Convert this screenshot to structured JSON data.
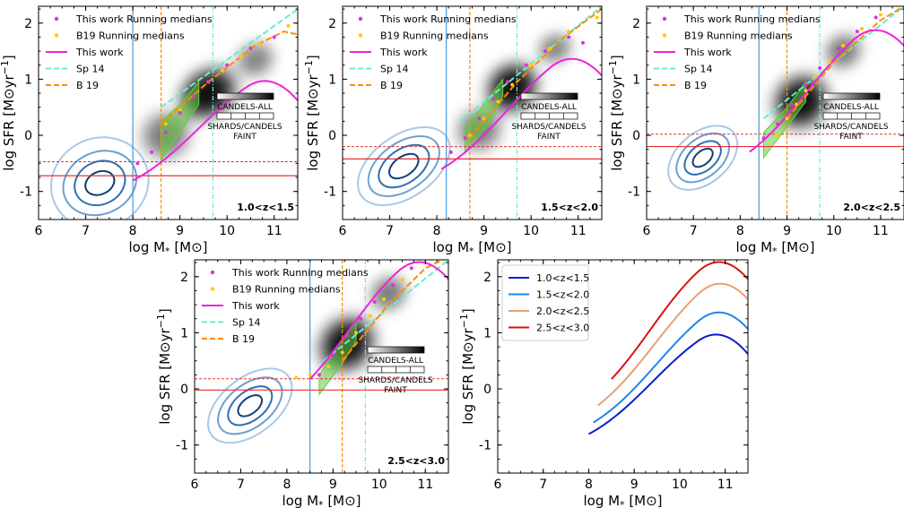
{
  "figure": {
    "xlabel": "log M",
    "xlabel_sub": "*",
    "xlabel_unit": " [M⊙]",
    "ylabel": "log SFR [M⊙yr",
    "ylabel_sup": "−1",
    "ylabel_end": "]"
  },
  "legend": {
    "this_work_medians": "This work Running medians",
    "b19_medians": "B19 Running medians",
    "this_work": "This work",
    "sp14": "Sp 14",
    "b19": "B 19"
  },
  "inset": {
    "candels_all": "CANDELS-ALL",
    "shards_line1": "SHARDS/CANDELS",
    "shards_line2": "FAINT"
  },
  "colors": {
    "this_work": "#ee22dd",
    "b19": "#ff8c00",
    "sp14": "#66eecc",
    "medians_this_work": "#dd33dd",
    "medians_b19": "#ffcc00",
    "mass_limit": "#4a9ad8",
    "sfr_limit": "#e83030",
    "green_band": "#66cc44",
    "contour_dark": "#0f3f78",
    "contour_light": "#a8c8e8"
  },
  "chart_data": [
    {
      "type": "scatter",
      "title": "1.0<z<1.5",
      "xlim": [
        6,
        11.5
      ],
      "ylim": [
        -1.5,
        2.3
      ],
      "xticks": [
        6,
        7,
        8,
        9,
        10,
        11
      ],
      "yticks": [
        -1,
        0,
        1,
        2
      ],
      "mass_limit": 8.0,
      "b19_mass_limit": 8.6,
      "sp14_mass_limit": 9.7,
      "sfr_limit_solid": -0.72,
      "sfr_limit_dashed": -0.47,
      "this_work_params": {
        "a": 2.75,
        "x0": 9.4,
        "w": 0.85,
        "c": -1.25,
        "sl": 0.95,
        "y0": 1.4
      },
      "sp14_line": [
        [
          8.6,
          0.5
        ],
        [
          11.5,
          2.25
        ]
      ],
      "b19_line": [
        [
          8.6,
          0.2
        ],
        [
          9.6,
          0.95
        ],
        [
          10.6,
          1.6
        ],
        [
          11.2,
          1.85
        ],
        [
          11.5,
          1.8
        ]
      ],
      "medians_this_work": [
        [
          8.1,
          -0.5
        ],
        [
          8.4,
          -0.3
        ],
        [
          8.7,
          0.05
        ],
        [
          9.0,
          0.4
        ],
        [
          9.3,
          0.7
        ],
        [
          9.6,
          0.95
        ],
        [
          10.0,
          1.25
        ],
        [
          10.5,
          1.55
        ],
        [
          11.0,
          1.75
        ]
      ],
      "medians_b19": [
        [
          8.7,
          0.2
        ],
        [
          9.0,
          0.45
        ],
        [
          9.3,
          0.7
        ],
        [
          9.6,
          0.95
        ],
        [
          9.9,
          1.15
        ],
        [
          10.3,
          1.4
        ],
        [
          10.7,
          1.62
        ],
        [
          11.3,
          1.95
        ]
      ],
      "green_band": [
        [
          8.6,
          -0.45
        ],
        [
          9.0,
          0.05
        ],
        [
          9.4,
          0.55
        ],
        [
          9.4,
          0.95
        ],
        [
          9.0,
          0.55
        ],
        [
          8.6,
          0.25
        ]
      ],
      "density": [
        {
          "x": 9.6,
          "y": 0.75,
          "sx": 0.85,
          "sy": 0.55,
          "rot": 35,
          "a": 1.0
        },
        {
          "x": 8.7,
          "y": 0.0,
          "sx": 0.7,
          "sy": 0.55,
          "rot": 30,
          "a": 0.55
        },
        {
          "x": 10.6,
          "y": 1.35,
          "sx": 0.55,
          "sy": 0.4,
          "rot": 30,
          "a": 0.5
        }
      ],
      "contours": [
        {
          "x": 7.3,
          "y": -0.85,
          "rx": [
            1.05,
            0.8,
            0.55,
            0.32
          ],
          "ry": [
            0.8,
            0.55,
            0.38,
            0.2
          ],
          "rot": 25
        }
      ],
      "curve_range": [
        8.0,
        11.5
      ],
      "summary_color": "#0a1ecc"
    },
    {
      "type": "scatter",
      "title": "1.5<z<2.0",
      "xlim": [
        6,
        11.5
      ],
      "ylim": [
        -1.5,
        2.3
      ],
      "xticks": [
        6,
        7,
        8,
        9,
        10,
        11
      ],
      "yticks": [
        -1,
        0,
        1,
        2
      ],
      "mass_limit": 8.2,
      "b19_mass_limit": 8.7,
      "sp14_mass_limit": 9.7,
      "sfr_limit_solid": -0.42,
      "sfr_limit_dashed": -0.2,
      "this_work_params": {
        "a": 3.1,
        "x0": 9.5,
        "w": 0.85,
        "c": -1.1,
        "sl": 0.95,
        "y0": 1.55
      },
      "sp14_line": [
        [
          8.5,
          0.25
        ],
        [
          11.5,
          2.3
        ]
      ],
      "b19_line": [
        [
          8.7,
          -0.05
        ],
        [
          9.7,
          0.95
        ],
        [
          10.7,
          1.75
        ],
        [
          11.5,
          2.25
        ]
      ],
      "medians_this_work": [
        [
          8.3,
          -0.3
        ],
        [
          8.6,
          -0.05
        ],
        [
          8.9,
          0.3
        ],
        [
          9.2,
          0.65
        ],
        [
          9.5,
          0.95
        ],
        [
          9.9,
          1.25
        ],
        [
          10.3,
          1.5
        ],
        [
          10.8,
          1.75
        ],
        [
          11.1,
          1.65
        ]
      ],
      "medians_b19": [
        [
          8.7,
          0.0
        ],
        [
          9.0,
          0.3
        ],
        [
          9.3,
          0.6
        ],
        [
          9.6,
          0.9
        ],
        [
          10.0,
          1.25
        ],
        [
          10.4,
          1.55
        ],
        [
          10.8,
          1.85
        ],
        [
          11.4,
          2.1
        ]
      ],
      "green_band": [
        [
          8.6,
          -0.3
        ],
        [
          9.1,
          0.2
        ],
        [
          9.4,
          0.7
        ],
        [
          9.4,
          1.0
        ],
        [
          9.0,
          0.55
        ],
        [
          8.6,
          0.15
        ]
      ],
      "density": [
        {
          "x": 9.6,
          "y": 0.85,
          "sx": 0.75,
          "sy": 0.55,
          "rot": 40,
          "a": 1.0
        },
        {
          "x": 8.9,
          "y": 0.1,
          "sx": 0.65,
          "sy": 0.5,
          "rot": 35,
          "a": 0.55
        },
        {
          "x": 10.5,
          "y": 1.55,
          "sx": 0.5,
          "sy": 0.35,
          "rot": 30,
          "a": 0.5
        }
      ],
      "contours": [
        {
          "x": 7.3,
          "y": -0.55,
          "rx": [
            1.1,
            0.85,
            0.6,
            0.35
          ],
          "ry": [
            0.55,
            0.42,
            0.3,
            0.17
          ],
          "rot": 35
        }
      ],
      "curve_range": [
        8.1,
        11.5
      ],
      "summary_color": "#1e88e5"
    },
    {
      "type": "scatter",
      "title": "2.0<z<2.5",
      "xlim": [
        6,
        11.5
      ],
      "ylim": [
        -1.5,
        2.3
      ],
      "xticks": [
        6,
        7,
        8,
        9,
        10,
        11
      ],
      "yticks": [
        -1,
        0,
        1,
        2
      ],
      "mass_limit": 8.4,
      "b19_mass_limit": 9.0,
      "sp14_mass_limit": 9.7,
      "sfr_limit_solid": -0.2,
      "sfr_limit_dashed": 0.02,
      "this_work_params": {
        "a": 3.5,
        "x0": 9.45,
        "w": 0.85,
        "c": -0.95,
        "sl": 1.0,
        "y0": 1.7
      },
      "sp14_line": [
        [
          8.5,
          0.3
        ],
        [
          11.5,
          2.3
        ]
      ],
      "b19_line": [
        [
          9.0,
          0.3
        ],
        [
          10.0,
          1.3
        ],
        [
          11.0,
          2.05
        ],
        [
          11.5,
          2.3
        ]
      ],
      "medians_this_work": [
        [
          8.5,
          -0.05
        ],
        [
          8.8,
          0.2
        ],
        [
          9.1,
          0.55
        ],
        [
          9.4,
          0.9
        ],
        [
          9.7,
          1.2
        ],
        [
          10.1,
          1.55
        ],
        [
          10.5,
          1.85
        ],
        [
          10.9,
          2.1
        ]
      ],
      "medians_b19": [
        [
          8.8,
          0.0
        ],
        [
          9.0,
          0.3
        ],
        [
          9.2,
          0.55
        ],
        [
          9.4,
          0.8
        ],
        [
          9.6,
          1.05
        ],
        [
          9.9,
          1.3
        ],
        [
          10.2,
          1.6
        ],
        [
          10.6,
          1.9
        ],
        [
          11.0,
          2.15
        ]
      ],
      "green_band": [
        [
          8.5,
          -0.4
        ],
        [
          9.0,
          0.15
        ],
        [
          9.4,
          0.6
        ],
        [
          9.4,
          0.95
        ],
        [
          9.0,
          0.5
        ],
        [
          8.5,
          0.05
        ]
      ],
      "density": [
        {
          "x": 9.3,
          "y": 0.6,
          "sx": 0.8,
          "sy": 0.6,
          "rot": 40,
          "a": 1.0
        },
        {
          "x": 10.2,
          "y": 1.5,
          "sx": 0.55,
          "sy": 0.4,
          "rot": 35,
          "a": 0.55
        }
      ],
      "contours": [
        {
          "x": 7.2,
          "y": -0.4,
          "rx": [
            0.85,
            0.65,
            0.45,
            0.25
          ],
          "ry": [
            0.45,
            0.34,
            0.23,
            0.12
          ],
          "rot": 40
        }
      ],
      "curve_range": [
        8.2,
        11.5
      ],
      "summary_color": "#e8a070"
    },
    {
      "type": "scatter",
      "title": "2.5<z<3.0",
      "xlim": [
        6,
        11.5
      ],
      "ylim": [
        -1.5,
        2.3
      ],
      "xticks": [
        6,
        7,
        8,
        9,
        10,
        11
      ],
      "yticks": [
        -1,
        0,
        1,
        2
      ],
      "mass_limit": 8.5,
      "b19_mass_limit": 9.2,
      "sp14_mass_limit": 9.7,
      "sfr_limit_solid": -0.02,
      "sfr_limit_dashed": 0.18,
      "this_work_params": {
        "a": 3.6,
        "x0": 9.35,
        "w": 0.8,
        "c": -0.75,
        "sl": 1.0,
        "y0": 1.85
      },
      "sp14_line": [
        [
          8.8,
          0.5
        ],
        [
          11.5,
          2.3
        ]
      ],
      "b19_line": [
        [
          9.2,
          0.5
        ],
        [
          10.2,
          1.5
        ],
        [
          11.0,
          2.15
        ],
        [
          11.5,
          2.35
        ]
      ],
      "medians_this_work": [
        [
          8.7,
          0.25
        ],
        [
          9.0,
          0.6
        ],
        [
          9.3,
          0.95
        ],
        [
          9.6,
          1.25
        ],
        [
          9.9,
          1.55
        ],
        [
          10.3,
          1.85
        ],
        [
          10.7,
          2.15
        ]
      ],
      "medians_b19": [
        [
          8.2,
          0.2
        ],
        [
          8.5,
          0.25
        ],
        [
          8.9,
          0.4
        ],
        [
          9.2,
          0.65
        ],
        [
          9.5,
          1.0
        ],
        [
          9.8,
          1.3
        ],
        [
          10.1,
          1.6
        ],
        [
          10.5,
          1.95
        ]
      ],
      "green_band": [
        [
          8.7,
          -0.1
        ],
        [
          9.2,
          0.45
        ],
        [
          9.5,
          0.85
        ],
        [
          9.5,
          1.2
        ],
        [
          9.1,
          0.75
        ],
        [
          8.7,
          0.25
        ]
      ],
      "density": [
        {
          "x": 9.3,
          "y": 0.8,
          "sx": 0.85,
          "sy": 0.6,
          "rot": 42,
          "a": 1.0
        },
        {
          "x": 10.2,
          "y": 1.7,
          "sx": 0.55,
          "sy": 0.4,
          "rot": 35,
          "a": 0.55
        }
      ],
      "contours": [
        {
          "x": 7.2,
          "y": -0.3,
          "rx": [
            1.05,
            0.8,
            0.55,
            0.3
          ],
          "ry": [
            0.5,
            0.38,
            0.26,
            0.14
          ],
          "rot": 38
        }
      ],
      "curve_range": [
        8.5,
        11.5
      ],
      "summary_color": "#dd1111"
    },
    {
      "type": "line",
      "title": "",
      "xlim": [
        6,
        11.5
      ],
      "ylim": [
        -1.5,
        2.3
      ],
      "xticks": [
        6,
        7,
        8,
        9,
        10,
        11
      ],
      "yticks": [
        -1,
        0,
        1,
        2
      ],
      "legend_position": "top-left",
      "series": [
        {
          "name": "1.0<z<1.5",
          "color": "#0a1ecc",
          "panel": 0
        },
        {
          "name": "1.5<z<2.0",
          "color": "#1e88e5",
          "panel": 1
        },
        {
          "name": "2.0<z<2.5",
          "color": "#e8a070",
          "panel": 2
        },
        {
          "name": "2.5<z<3.0",
          "color": "#dd1111",
          "panel": 3
        }
      ]
    }
  ]
}
